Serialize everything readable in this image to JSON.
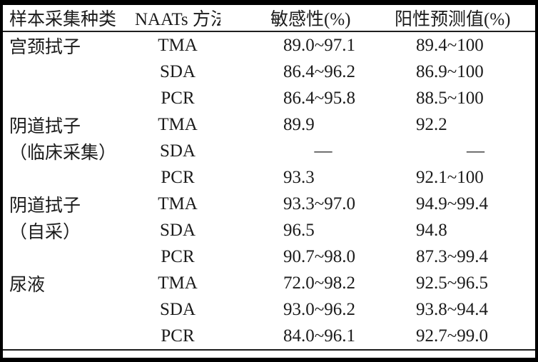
{
  "table": {
    "columns": [
      "样本采集种类",
      "NAATs 方法",
      "敏感性(%)",
      "阳性预测值(%)"
    ],
    "missing_marker": "—",
    "rows": [
      {
        "sample": "宫颈拭子",
        "method": "TMA",
        "sensitivity": "89.0~97.1",
        "ppv": "89.4~100"
      },
      {
        "sample": "",
        "method": "SDA",
        "sensitivity": "86.4~96.2",
        "ppv": "86.9~100"
      },
      {
        "sample": "",
        "method": "PCR",
        "sensitivity": "86.4~95.8",
        "ppv": "88.5~100"
      },
      {
        "sample": "阴道拭子",
        "method": "TMA",
        "sensitivity": "89.9",
        "ppv": "92.2"
      },
      {
        "sample": "（临床采集）",
        "method": "SDA",
        "sensitivity": "—",
        "ppv": "—"
      },
      {
        "sample": "",
        "method": "PCR",
        "sensitivity": "93.3",
        "ppv": "92.1~100"
      },
      {
        "sample": "阴道拭子",
        "method": "TMA",
        "sensitivity": "93.3~97.0",
        "ppv": "94.9~99.4"
      },
      {
        "sample": "（自采）",
        "method": "SDA",
        "sensitivity": "96.5",
        "ppv": "94.8"
      },
      {
        "sample": "",
        "method": "PCR",
        "sensitivity": "90.7~98.0",
        "ppv": "87.3~99.4"
      },
      {
        "sample": "尿液",
        "method": "TMA",
        "sensitivity": "72.0~98.2",
        "ppv": "92.5~96.5"
      },
      {
        "sample": "",
        "method": "SDA",
        "sensitivity": "93.0~96.2",
        "ppv": "93.8~94.4"
      },
      {
        "sample": "",
        "method": "PCR",
        "sensitivity": "84.0~96.1",
        "ppv": "92.7~99.0"
      }
    ]
  },
  "colors": {
    "text": "#1b1b1b",
    "rule": "#1f1f1f",
    "frame": "#000000",
    "background": "#ffffff"
  }
}
